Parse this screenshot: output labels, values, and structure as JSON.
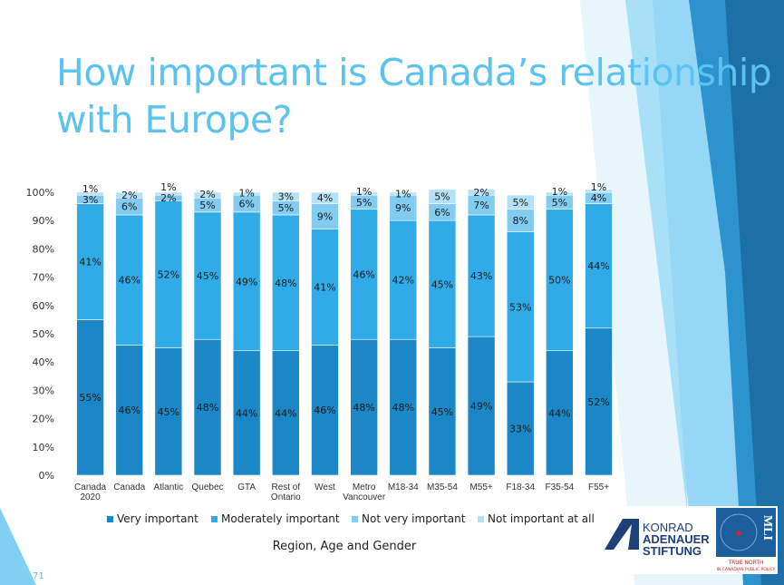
{
  "title": "How important is Canada’s relationship with Europe?",
  "page_number": "71",
  "logos": {
    "kas": "KONRAD ADENAUER STIFTUNG",
    "mli": "MLI TRUE NORTH IN CANADIAN PUBLIC POLICY"
  },
  "chart_data": {
    "type": "bar",
    "stacked": true,
    "xlabel": "Region, Age and Gender",
    "ylabel": "",
    "ylim": [
      0,
      100
    ],
    "yticks": [
      "0%",
      "10%",
      "20%",
      "30%",
      "40%",
      "50%",
      "60%",
      "70%",
      "80%",
      "90%",
      "100%"
    ],
    "categories": [
      [
        "Canada",
        "2020"
      ],
      [
        "Canada"
      ],
      [
        "Atlantic"
      ],
      [
        "Quebec"
      ],
      [
        "GTA"
      ],
      [
        "Rest of",
        "Ontario"
      ],
      [
        "West"
      ],
      [
        "Metro",
        "Vancouver"
      ],
      [
        "M18-34"
      ],
      [
        "M35-54"
      ],
      [
        "M55+"
      ],
      [
        "F18-34"
      ],
      [
        "F35-54"
      ],
      [
        "F55+"
      ]
    ],
    "legend_placement": "bottom",
    "series": [
      {
        "name": "Very important",
        "color": "#1b87c6",
        "values": [
          55,
          46,
          45,
          48,
          44,
          44,
          46,
          48,
          48,
          45,
          49,
          33,
          44,
          52
        ]
      },
      {
        "name": "Moderately important",
        "color": "#30abe8",
        "values": [
          41,
          46,
          52,
          45,
          49,
          48,
          41,
          46,
          42,
          45,
          43,
          53,
          50,
          44
        ]
      },
      {
        "name": "Not very important",
        "color": "#82cbf1",
        "values": [
          3,
          6,
          2,
          5,
          6,
          5,
          9,
          5,
          9,
          6,
          7,
          8,
          5,
          4
        ]
      },
      {
        "name": "Not important at all",
        "color": "#b5e1f7",
        "values": [
          1,
          2,
          1,
          2,
          1,
          3,
          4,
          1,
          1,
          5,
          2,
          5,
          1,
          1
        ]
      }
    ]
  }
}
